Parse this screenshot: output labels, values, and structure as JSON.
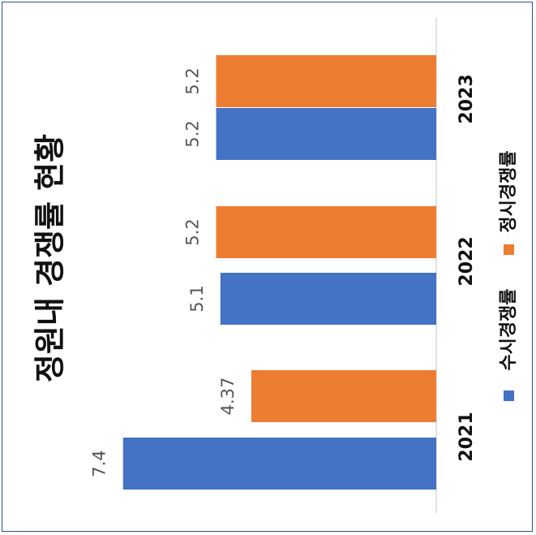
{
  "chart_data": {
    "type": "bar",
    "title": "정원내 경쟁률 현황",
    "categories": [
      "2021",
      "2022",
      "2023"
    ],
    "series": [
      {
        "name": "수시경쟁률",
        "values": [
          7.4,
          5.1,
          5.2
        ],
        "labels": [
          "7.4",
          "5.1",
          "5.2"
        ],
        "color": "#4472c4"
      },
      {
        "name": "정시경쟁률",
        "values": [
          4.37,
          5.2,
          5.2
        ],
        "labels": [
          "4.37",
          "5.2",
          "5.2"
        ],
        "color": "#ed7d31"
      }
    ],
    "ylim": [
      0,
      8
    ],
    "grid": false,
    "legend_position": "bottom",
    "orientation": "rotated-90"
  },
  "colors": {
    "frame": "#2f4f8f",
    "axis": "#d9d9d9"
  }
}
